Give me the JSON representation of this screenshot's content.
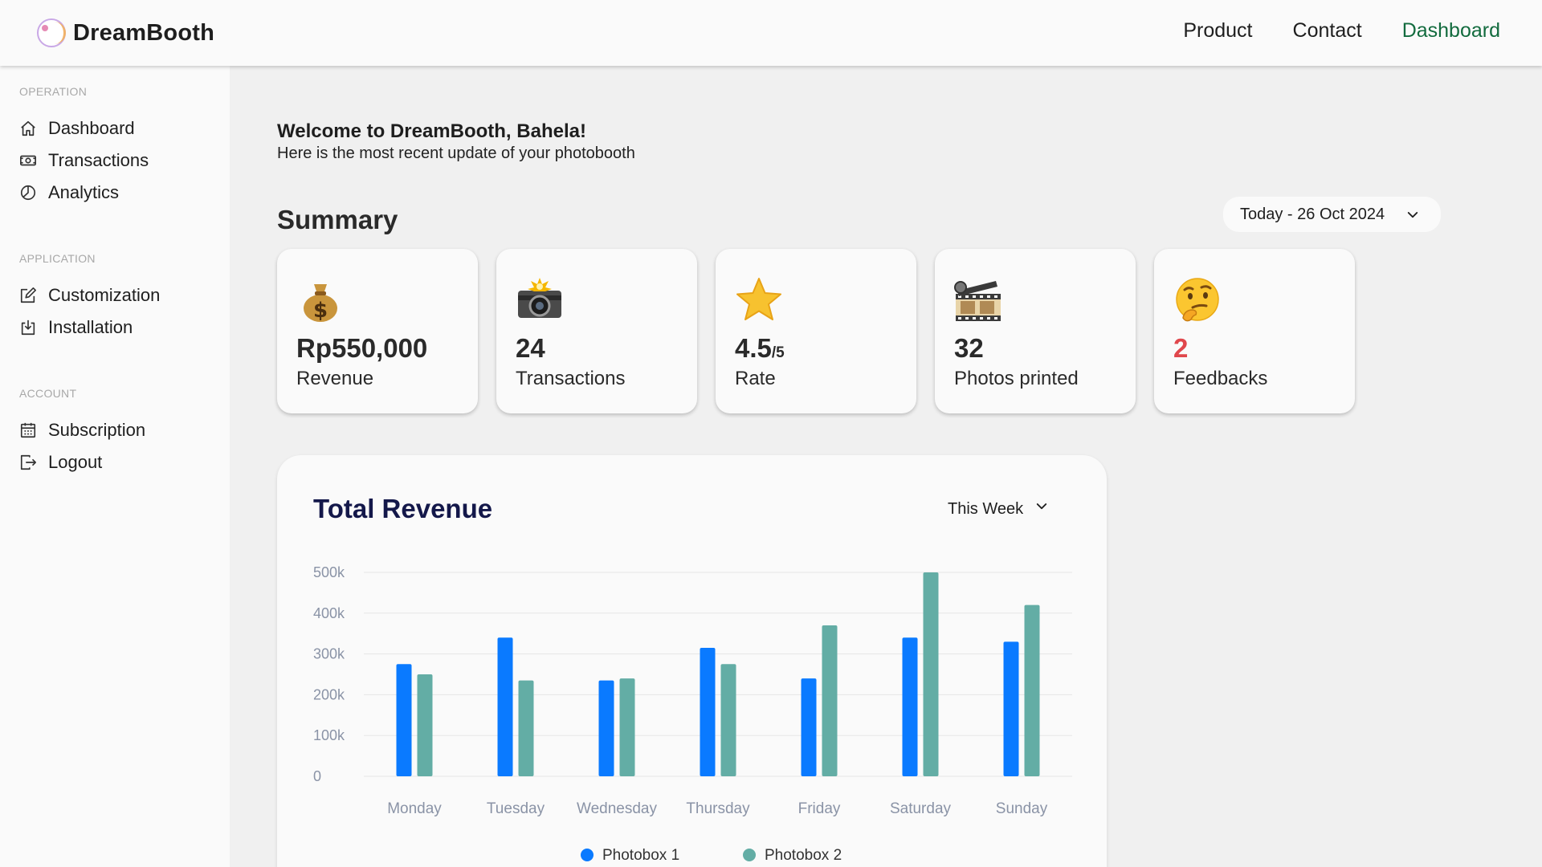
{
  "app": {
    "name": "DreamBooth"
  },
  "topnav": [
    {
      "label": "Product"
    },
    {
      "label": "Contact"
    },
    {
      "label": "Dashboard",
      "active": true
    }
  ],
  "sidebar": {
    "sections": [
      {
        "heading": "OPERATION",
        "items": [
          {
            "label": "Dashboard",
            "icon": "home-icon"
          },
          {
            "label": "Transactions",
            "icon": "money-icon"
          },
          {
            "label": "Analytics",
            "icon": "pie-chart-icon"
          }
        ]
      },
      {
        "heading": "APPLICATION",
        "items": [
          {
            "label": "Customization",
            "icon": "edit-icon"
          },
          {
            "label": "Installation",
            "icon": "download-icon"
          }
        ]
      },
      {
        "heading": "ACCOUNT",
        "items": [
          {
            "label": "Subscription",
            "icon": "calendar-icon"
          },
          {
            "label": "Logout",
            "icon": "logout-icon"
          }
        ]
      }
    ]
  },
  "main": {
    "welcome_title": "Welcome to DreamBooth, Bahela!",
    "welcome_sub": "Here is the most recent update of your photobooth",
    "summary_title": "Summary",
    "date_filter": "Today - 26 Oct 2024"
  },
  "cards": [
    {
      "value": "Rp550,000",
      "label": "Revenue",
      "icon": "money-bag-icon"
    },
    {
      "value": "24",
      "label": "Transactions",
      "icon": "camera-flash-icon"
    },
    {
      "value": "4.5",
      "suffix": "/5",
      "label": "Rate",
      "icon": "star-icon"
    },
    {
      "value": "32",
      "label": "Photos printed",
      "icon": "film-reel-icon"
    },
    {
      "value": "2",
      "label": "Feedbacks",
      "icon": "thinking-face-icon",
      "highlight": "#e0474c"
    }
  ],
  "revenue": {
    "title": "Total Revenue",
    "period": "This Week"
  },
  "chart_data": {
    "type": "bar",
    "title": "Total Revenue",
    "categories": [
      "Monday",
      "Tuesday",
      "Wednesday",
      "Thursday",
      "Friday",
      "Saturday",
      "Sunday"
    ],
    "series": [
      {
        "name": "Photobox 1",
        "color": "#0a7aff",
        "values": [
          275000,
          340000,
          235000,
          315000,
          240000,
          340000,
          330000
        ]
      },
      {
        "name": "Photobox 2",
        "color": "#63ada5",
        "values": [
          250000,
          235000,
          240000,
          275000,
          370000,
          500000,
          420000
        ]
      }
    ],
    "yticks": [
      "0",
      "100k",
      "200k",
      "300k",
      "400k",
      "500k"
    ],
    "ylim": [
      0,
      500000
    ],
    "grid": true,
    "legend": "bottom"
  }
}
